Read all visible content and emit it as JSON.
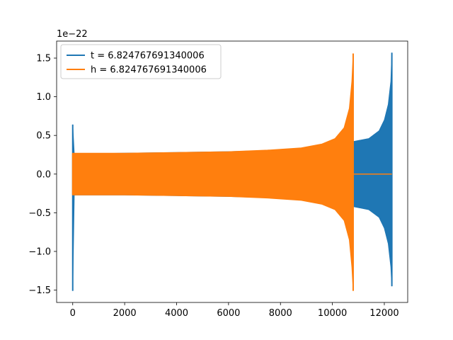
{
  "chart_data": {
    "type": "line",
    "y_offset_label": "1e−22",
    "x_ticks": [
      0,
      2000,
      4000,
      6000,
      8000,
      10000,
      12000
    ],
    "x_tick_labels": [
      "0",
      "2000",
      "4000",
      "6000",
      "8000",
      "10000",
      "12000"
    ],
    "y_ticks": [
      -1.5,
      -1.0,
      -0.5,
      0.0,
      0.5,
      1.0,
      1.5
    ],
    "y_tick_labels": [
      "−1.5",
      "−1.0",
      "−0.5",
      "0.0",
      "0.5",
      "1.0",
      "1.5"
    ],
    "xlim": [
      -620,
      12900
    ],
    "ylim": [
      -1.66,
      1.72
    ],
    "grid": false,
    "legend_position": "upper-left",
    "series": [
      {
        "name": "t = 6.824767691340006",
        "color": "#1f77b4",
        "envelope": [
          {
            "x": 0,
            "lo": -1.51,
            "hi": 0.64
          },
          {
            "x": 60,
            "lo": -0.27,
            "hi": 0.26
          },
          {
            "x": 2000,
            "lo": -0.27,
            "hi": 0.27
          },
          {
            "x": 4000,
            "lo": -0.28,
            "hi": 0.28
          },
          {
            "x": 6000,
            "lo": -0.29,
            "hi": 0.29
          },
          {
            "x": 8000,
            "lo": -0.31,
            "hi": 0.31
          },
          {
            "x": 9500,
            "lo": -0.34,
            "hi": 0.34
          },
          {
            "x": 10800,
            "lo": -0.42,
            "hi": 0.42
          },
          {
            "x": 11400,
            "lo": -0.46,
            "hi": 0.46
          },
          {
            "x": 11800,
            "lo": -0.56,
            "hi": 0.56
          },
          {
            "x": 12000,
            "lo": -0.7,
            "hi": 0.7
          },
          {
            "x": 12150,
            "lo": -0.9,
            "hi": 0.9
          },
          {
            "x": 12250,
            "lo": -1.2,
            "hi": 1.2
          },
          {
            "x": 12290,
            "lo": -1.45,
            "hi": 1.57
          }
        ]
      },
      {
        "name": "h = 6.824767691340006",
        "color": "#ff7f0e",
        "envelope": [
          {
            "x": 0,
            "lo": -0.27,
            "hi": 0.27
          },
          {
            "x": 2000,
            "lo": -0.27,
            "hi": 0.27
          },
          {
            "x": 4000,
            "lo": -0.28,
            "hi": 0.28
          },
          {
            "x": 6000,
            "lo": -0.29,
            "hi": 0.29
          },
          {
            "x": 7500,
            "lo": -0.31,
            "hi": 0.31
          },
          {
            "x": 8800,
            "lo": -0.34,
            "hi": 0.34
          },
          {
            "x": 9600,
            "lo": -0.39,
            "hi": 0.39
          },
          {
            "x": 10100,
            "lo": -0.46,
            "hi": 0.46
          },
          {
            "x": 10450,
            "lo": -0.6,
            "hi": 0.6
          },
          {
            "x": 10650,
            "lo": -0.85,
            "hi": 0.85
          },
          {
            "x": 10750,
            "lo": -1.2,
            "hi": 1.2
          },
          {
            "x": 10800,
            "lo": -1.51,
            "hi": 1.56
          }
        ],
        "tail": {
          "x_start": 10800,
          "x_end": 12290,
          "y": 0.0
        }
      }
    ]
  }
}
